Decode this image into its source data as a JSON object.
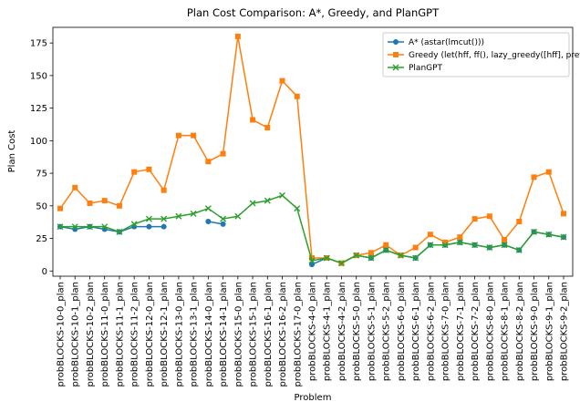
{
  "chart_data": {
    "type": "line",
    "title": "Plan Cost Comparison: A*, Greedy, and PlanGPT",
    "x_label": "Problem",
    "y_label": "Plan Cost",
    "categories": [
      "probBLOCKS-10-0_plan",
      "probBLOCKS-10-1_plan",
      "probBLOCKS-10-2_plan",
      "probBLOCKS-11-0_plan",
      "probBLOCKS-11-1_plan",
      "probBLOCKS-11-2_plan",
      "probBLOCKS-12-0_plan",
      "probBLOCKS-12-1_plan",
      "probBLOCKS-13-0_plan",
      "probBLOCKS-13-1_plan",
      "probBLOCKS-14-0_plan",
      "probBLOCKS-14-1_plan",
      "probBLOCKS-15-0_plan",
      "probBLOCKS-15-1_plan",
      "probBLOCKS-16-1_plan",
      "probBLOCKS-16-2_plan",
      "probBLOCKS-17-0_plan",
      "probBLOCKS-4-0_plan",
      "probBLOCKS-4-1_plan",
      "probBLOCKS-4-2_plan",
      "probBLOCKS-5-0_plan",
      "probBLOCKS-5-1_plan",
      "probBLOCKS-5-2_plan",
      "probBLOCKS-6-0_plan",
      "probBLOCKS-6-1_plan",
      "probBLOCKS-6-2_plan",
      "probBLOCKS-7-0_plan",
      "probBLOCKS-7-1_plan",
      "probBLOCKS-7-2_plan",
      "probBLOCKS-8-0_plan",
      "probBLOCKS-8-1_plan",
      "probBLOCKS-8-2_plan",
      "probBLOCKS-9-0_plan",
      "probBLOCKS-9-1_plan",
      "probBLOCKS-9-2_plan"
    ],
    "series": [
      {
        "name": "A* (astar(lmcut()))",
        "color": "#1f77b4",
        "marker": "o",
        "values": [
          34,
          32,
          34,
          32,
          30,
          34,
          34,
          34,
          null,
          null,
          38,
          36,
          null,
          null,
          null,
          null,
          null,
          5,
          10,
          6,
          12,
          10,
          16,
          12,
          10,
          20,
          20,
          22,
          20,
          18,
          20,
          16,
          30,
          28,
          26
        ]
      },
      {
        "name": "Greedy (let(hff, ff(), lazy_greedy([hff], preferred=[hff]))",
        "color": "#ff7f0e",
        "marker": "s",
        "values": [
          48,
          64,
          52,
          54,
          50,
          76,
          78,
          62,
          104,
          104,
          84,
          90,
          180,
          116,
          110,
          146,
          134,
          10,
          10,
          6,
          12,
          14,
          20,
          12,
          18,
          28,
          22,
          26,
          40,
          42,
          24,
          38,
          72,
          76,
          44
        ]
      },
      {
        "name": "PlanGPT",
        "color": "#2ca02c",
        "marker": "x",
        "values": [
          34,
          34,
          34,
          34,
          30,
          36,
          40,
          40,
          42,
          44,
          48,
          40,
          42,
          52,
          54,
          58,
          48,
          8,
          10,
          6,
          12,
          10,
          16,
          12,
          10,
          20,
          20,
          22,
          20,
          18,
          20,
          16,
          30,
          28,
          26
        ]
      }
    ],
    "ylim": [
      -4,
      187
    ],
    "yticks": [
      0,
      25,
      50,
      75,
      100,
      125,
      150,
      175
    ],
    "grid": false,
    "legend": "upper right"
  }
}
